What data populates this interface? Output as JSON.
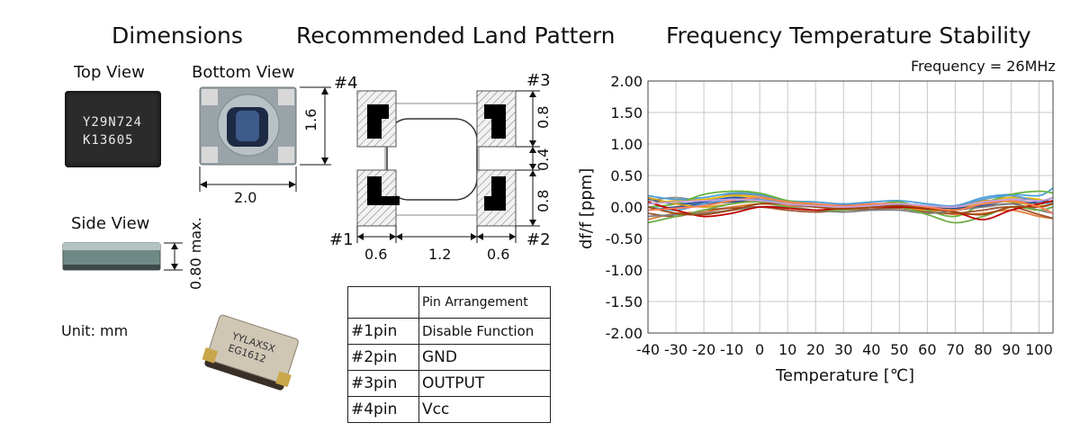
{
  "dimensions": {
    "title": "Dimensions",
    "top_view": "Top View",
    "bottom_view": "Bottom View",
    "side_view": "Side View",
    "unit": "Unit: mm",
    "marking_line1": "Y29N724",
    "marking_line2": "K13605",
    "bottom_height": "1.6",
    "bottom_width": "2.0",
    "side_height": "0.80 max.",
    "photo_marking_line1": "YYLAXSX",
    "photo_marking_line2": "EG1612"
  },
  "land_pattern": {
    "title": "Recommended Land Pattern",
    "pad_labels": [
      "#4",
      "#3",
      "#1",
      "#2"
    ],
    "dim_right": [
      "0.8",
      "0.4",
      "0.8"
    ],
    "dim_bottom": [
      "0.6",
      "1.2",
      "0.6"
    ]
  },
  "pin_table": {
    "header": "Pin Arrangement",
    "rows": [
      {
        "pin": "#1pin",
        "function": "Disable Function"
      },
      {
        "pin": "#2pin",
        "function": "GND"
      },
      {
        "pin": "#3pin",
        "function": "OUTPUT"
      },
      {
        "pin": "#4pin",
        "function": "Vcc"
      }
    ]
  },
  "chart_data": {
    "type": "line",
    "title": "Frequency Temperature Stability",
    "annotation": "Frequency = 26MHz",
    "xlabel": "Temperature [℃]",
    "ylabel": "df/f [ppm]",
    "xlim": [
      -40,
      105
    ],
    "ylim": [
      -2.0,
      2.0
    ],
    "xticks": [
      "-40",
      "-30",
      "-20",
      "-10",
      "0",
      "10",
      "20",
      "30",
      "40",
      "50",
      "60",
      "70",
      "80",
      "90",
      "100"
    ],
    "yticks": [
      "2.00",
      "1.50",
      "1.00",
      "0.50",
      "0.00",
      "-0.50",
      "-1.00",
      "-1.50",
      "-2.00"
    ],
    "grid": true,
    "x": [
      -40,
      -30,
      -20,
      -10,
      0,
      10,
      20,
      30,
      40,
      50,
      60,
      70,
      80,
      90,
      100,
      105
    ],
    "series": [
      {
        "color": "#1f4e9b",
        "values": [
          0.12,
          0.05,
          0.08,
          0.15,
          0.12,
          0.05,
          0.02,
          0.03,
          0.05,
          0.03,
          -0.03,
          -0.05,
          0.05,
          0.12,
          0.1,
          0.08
        ]
      },
      {
        "color": "#e07b39",
        "values": [
          -0.2,
          -0.1,
          -0.08,
          0.0,
          0.05,
          0.02,
          0.0,
          -0.03,
          0.0,
          0.02,
          -0.05,
          -0.12,
          -0.1,
          -0.05,
          -0.15,
          -0.18
        ]
      },
      {
        "color": "#8c8c8c",
        "values": [
          0.1,
          0.15,
          0.1,
          0.2,
          0.18,
          0.08,
          0.05,
          0.02,
          0.03,
          0.05,
          0.0,
          -0.05,
          0.02,
          0.1,
          0.05,
          0.1
        ]
      },
      {
        "color": "#e8b400",
        "values": [
          0.05,
          0.1,
          0.12,
          0.18,
          0.15,
          0.05,
          0.03,
          0.0,
          0.02,
          0.0,
          -0.05,
          -0.03,
          0.08,
          0.15,
          0.12,
          0.05
        ]
      },
      {
        "color": "#4aa0d8",
        "values": [
          0.18,
          0.12,
          0.15,
          0.22,
          0.2,
          0.1,
          0.08,
          0.05,
          0.08,
          0.1,
          0.05,
          0.02,
          0.15,
          0.2,
          0.18,
          0.3
        ]
      },
      {
        "color": "#6bb33f",
        "values": [
          0.0,
          0.05,
          0.2,
          0.25,
          0.22,
          0.1,
          0.05,
          0.0,
          0.02,
          0.08,
          -0.05,
          -0.15,
          0.05,
          0.2,
          0.25,
          0.22
        ]
      },
      {
        "color": "#2b4a8c",
        "values": [
          -0.05,
          0.0,
          0.05,
          0.08,
          0.1,
          0.05,
          0.02,
          -0.02,
          0.0,
          0.02,
          0.0,
          -0.02,
          0.02,
          0.05,
          0.08,
          0.15
        ]
      },
      {
        "color": "#a0522d",
        "values": [
          -0.1,
          -0.15,
          -0.05,
          -0.02,
          0.0,
          -0.05,
          -0.08,
          -0.05,
          -0.03,
          -0.02,
          -0.08,
          -0.1,
          -0.05,
          0.0,
          -0.12,
          -0.18
        ]
      },
      {
        "color": "#7f7f7f",
        "values": [
          -0.15,
          -0.12,
          -0.1,
          -0.05,
          0.0,
          0.0,
          -0.05,
          -0.08,
          -0.05,
          -0.05,
          -0.1,
          -0.05,
          0.0,
          0.05,
          -0.05,
          -0.1
        ]
      },
      {
        "color": "#d4a017",
        "values": [
          0.15,
          0.05,
          0.0,
          0.05,
          0.1,
          0.08,
          0.02,
          -0.02,
          0.02,
          0.05,
          0.02,
          0.0,
          0.1,
          0.08,
          0.02,
          0.05
        ]
      },
      {
        "color": "#5b9bd5",
        "values": [
          0.0,
          -0.05,
          0.05,
          0.12,
          0.12,
          0.05,
          0.0,
          0.02,
          0.05,
          0.05,
          0.02,
          0.02,
          0.12,
          0.18,
          0.08,
          0.05
        ]
      },
      {
        "color": "#70ad47",
        "values": [
          -0.25,
          -0.15,
          -0.05,
          0.05,
          0.08,
          0.0,
          -0.05,
          -0.05,
          0.0,
          0.0,
          -0.12,
          -0.25,
          -0.15,
          0.0,
          -0.05,
          0.0
        ]
      },
      {
        "color": "#c00000",
        "values": [
          0.08,
          -0.05,
          -0.15,
          -0.1,
          0.0,
          -0.02,
          -0.05,
          -0.02,
          0.0,
          0.0,
          -0.03,
          -0.08,
          -0.2,
          -0.05,
          0.05,
          0.1
        ]
      },
      {
        "color": "#9e480e",
        "values": [
          0.0,
          -0.1,
          -0.12,
          -0.05,
          0.05,
          0.05,
          0.0,
          -0.03,
          0.0,
          0.02,
          -0.02,
          -0.08,
          -0.12,
          0.0,
          0.0,
          0.05
        ]
      },
      {
        "color": "#ff7f50",
        "values": [
          -0.05,
          -0.02,
          0.02,
          0.1,
          0.15,
          0.08,
          0.05,
          0.02,
          0.05,
          0.05,
          0.0,
          -0.05,
          0.05,
          0.1,
          0.0,
          -0.1
        ]
      },
      {
        "color": "#c9a0dc",
        "values": [
          0.05,
          0.08,
          0.1,
          0.12,
          0.1,
          0.05,
          0.02,
          0.0,
          0.02,
          0.05,
          0.02,
          0.0,
          0.08,
          0.12,
          0.1,
          0.15
        ]
      }
    ]
  }
}
